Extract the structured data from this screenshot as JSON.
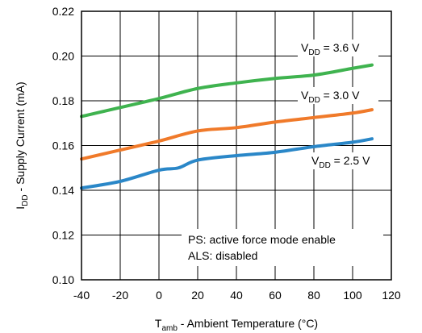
{
  "chart_data": {
    "type": "line",
    "xlabel": {
      "main": "T",
      "sub": "amb",
      "rest": " - Ambient Temperature (°C)"
    },
    "ylabel": {
      "main": "I",
      "sub": "DD",
      "rest": " - Supply Current (mA)"
    },
    "xlim": [
      -40,
      120
    ],
    "ylim": [
      0.1,
      0.22
    ],
    "x_ticks": [
      -40,
      -20,
      0,
      20,
      40,
      60,
      80,
      100,
      120
    ],
    "x_tick_labels": [
      "-40",
      "-20",
      "0",
      "20",
      "40",
      "60",
      "80",
      "100",
      "120"
    ],
    "y_ticks": [
      0.1,
      0.12,
      0.14,
      0.16,
      0.18,
      0.2,
      0.22
    ],
    "y_tick_labels": [
      "0.10",
      "0.12",
      "0.14",
      "0.16",
      "0.18",
      "0.20",
      "0.22"
    ],
    "grid": true,
    "series": [
      {
        "color": "#3fb34f",
        "label": {
          "main": "V",
          "sub": "DD",
          "rest": " = 3.6 V"
        },
        "x": [
          -40,
          -20,
          0,
          20,
          40,
          60,
          80,
          100,
          110
        ],
        "y": [
          0.173,
          0.177,
          0.181,
          0.1855,
          0.188,
          0.19,
          0.1915,
          0.1945,
          0.196
        ]
      },
      {
        "color": "#f07a2a",
        "label": {
          "main": "V",
          "sub": "DD",
          "rest": " = 3.0 V"
        },
        "x": [
          -40,
          -20,
          0,
          20,
          40,
          60,
          80,
          100,
          110
        ],
        "y": [
          0.154,
          0.158,
          0.162,
          0.1665,
          0.168,
          0.1705,
          0.1725,
          0.1745,
          0.176
        ]
      },
      {
        "color": "#2a87c8",
        "label": {
          "main": "V",
          "sub": "DD",
          "rest": " = 2.5 V"
        },
        "x": [
          -40,
          -20,
          0,
          10,
          20,
          40,
          60,
          80,
          100,
          110
        ],
        "y": [
          0.141,
          0.144,
          0.149,
          0.15,
          0.1535,
          0.1555,
          0.157,
          0.1595,
          0.1615,
          0.163
        ]
      }
    ],
    "notes": [
      "PS: active force mode enable",
      "ALS: disabled"
    ]
  }
}
